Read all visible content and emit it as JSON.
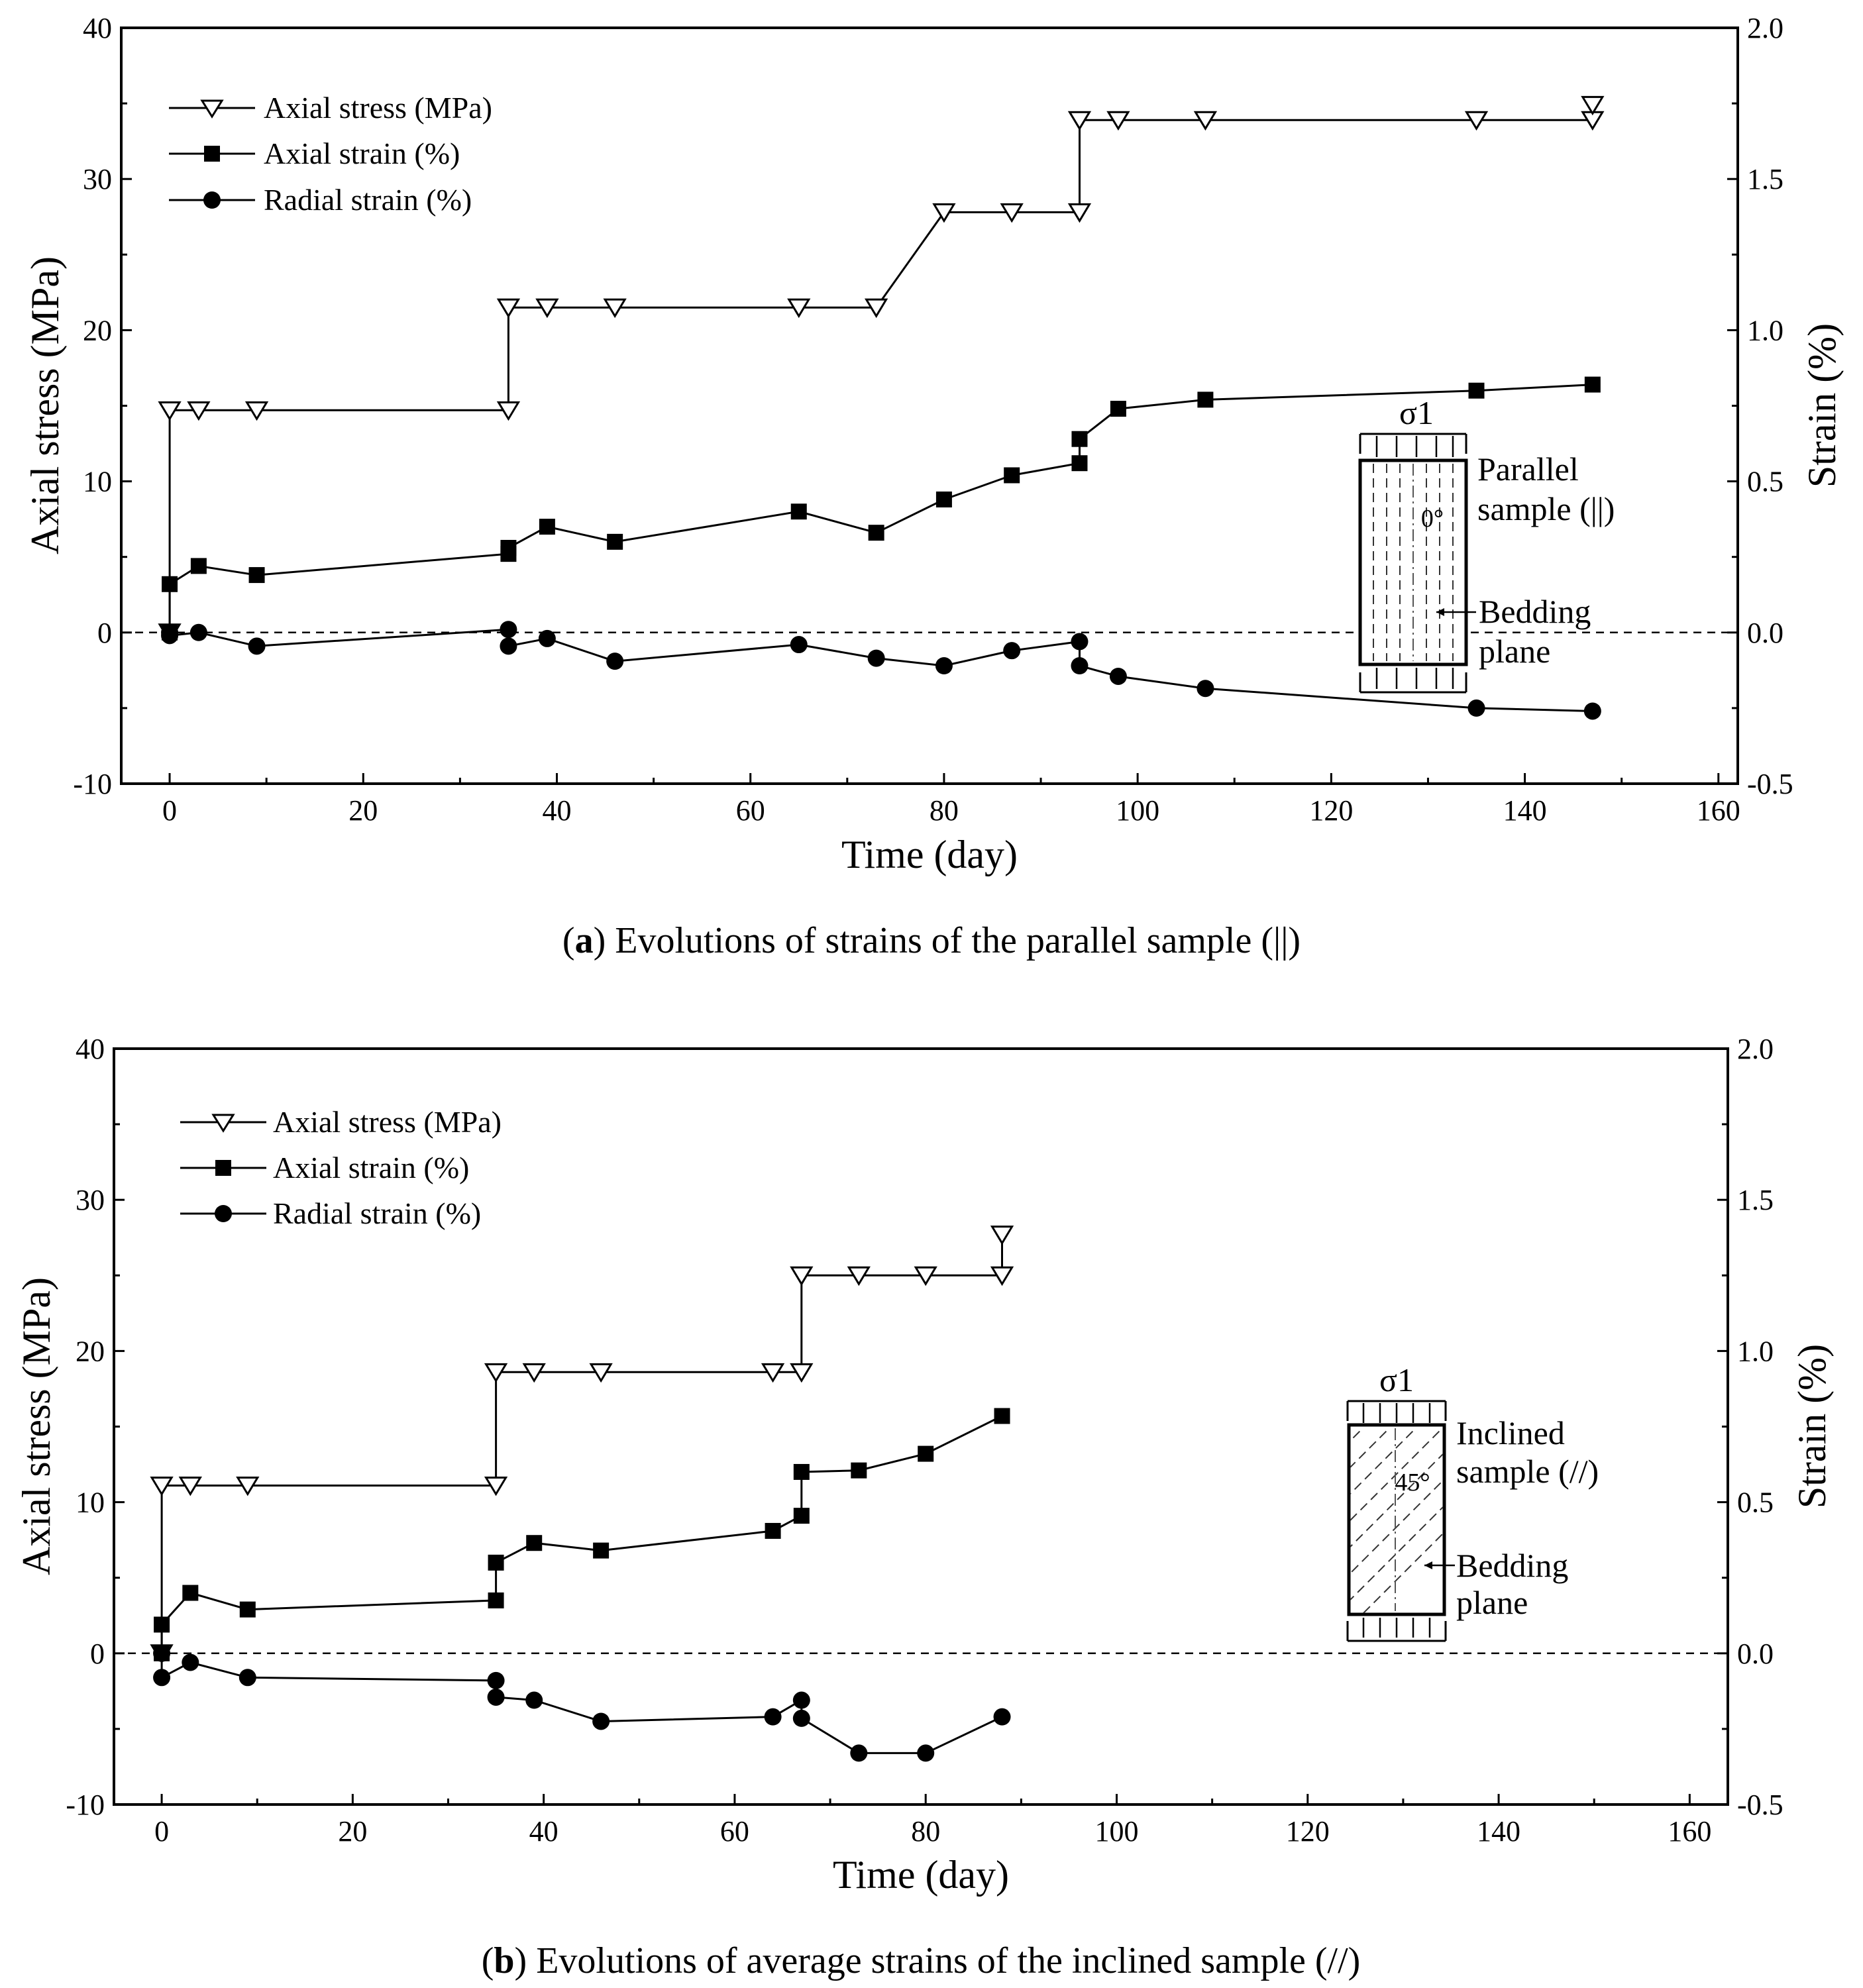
{
  "chart_data": [
    {
      "type": "line",
      "panel": "a",
      "caption_prefix": "(a)",
      "caption_text": "Evolutions of strains of the parallel sample (||)",
      "xlabel": "Time (day)",
      "ylabel": "Axial stress (MPa)",
      "y2label": "Strain (%)",
      "xlim": [
        -5,
        162
      ],
      "ylim": [
        -10,
        40
      ],
      "y2lim": [
        -0.5,
        2.0
      ],
      "xticks": [
        "0",
        "20",
        "40",
        "60",
        "80",
        "100",
        "120",
        "140",
        "160"
      ],
      "yticks": [
        "-10",
        "0",
        "10",
        "20",
        "30",
        "40"
      ],
      "y2ticks": [
        "-0.5",
        "0.0",
        "0.5",
        "1.0",
        "1.5",
        "2.0"
      ],
      "zero_line": true,
      "legend": {
        "position": "top-left",
        "entries": [
          "Axial stress (MPa)",
          "Axial strain (%)",
          "Radial strain (%)"
        ]
      },
      "series": [
        {
          "name": "Axial stress (MPa)",
          "axis": "left",
          "marker": "triangle-down-open",
          "x": [
            0,
            0,
            3,
            9,
            35,
            35,
            39,
            46,
            65,
            73,
            80,
            87,
            94,
            94,
            98,
            107,
            135,
            147,
            147
          ],
          "y": [
            0,
            14.7,
            14.7,
            14.7,
            14.7,
            21.5,
            21.5,
            21.5,
            21.5,
            21.5,
            27.8,
            27.8,
            27.8,
            33.9,
            33.9,
            33.9,
            33.9,
            33.9,
            34.9
          ]
        },
        {
          "name": "Axial strain (%)",
          "axis": "right",
          "marker": "square-filled",
          "x": [
            0,
            0,
            3,
            9,
            35,
            35,
            39,
            46,
            65,
            73,
            80,
            87,
            94,
            94,
            98,
            107,
            135,
            147
          ],
          "y": [
            0.0,
            0.16,
            0.22,
            0.19,
            0.26,
            0.28,
            0.35,
            0.3,
            0.4,
            0.33,
            0.44,
            0.52,
            0.56,
            0.64,
            0.74,
            0.77,
            0.8,
            0.82
          ]
        },
        {
          "name": "Radial strain (%)",
          "axis": "right",
          "marker": "circle-filled",
          "x": [
            0,
            0,
            3,
            9,
            35,
            35,
            39,
            46,
            65,
            73,
            80,
            87,
            94,
            94,
            98,
            107,
            135,
            147
          ],
          "y": [
            0.0,
            -0.01,
            0.0,
            -0.045,
            0.01,
            -0.045,
            -0.02,
            -0.095,
            -0.04,
            -0.085,
            -0.11,
            -0.06,
            -0.03,
            -0.11,
            -0.145,
            -0.185,
            -0.25,
            -0.26
          ]
        }
      ],
      "inset": {
        "load_label": "σ1",
        "sample_label_line1": "Parallel",
        "sample_label_line2": "sample (||)",
        "angle_label": "0°",
        "bedding_label_line1": "Bedding",
        "bedding_label_line2": "plane"
      }
    },
    {
      "type": "line",
      "panel": "b",
      "caption_prefix": "(b)",
      "caption_text": "Evolutions of average strains of the inclined sample (//)",
      "xlabel": "Time (day)",
      "ylabel": "Axial stress (MPa)",
      "y2label": "Strain (%)",
      "xlim": [
        -5,
        164
      ],
      "ylim": [
        -10,
        40
      ],
      "y2lim": [
        -0.5,
        2.0
      ],
      "xticks": [
        "0",
        "20",
        "40",
        "60",
        "80",
        "100",
        "120",
        "140",
        "160"
      ],
      "yticks": [
        "-10",
        "0",
        "10",
        "20",
        "30",
        "40"
      ],
      "y2ticks": [
        "-0.5",
        "0.0",
        "0.5",
        "1.0",
        "1.5",
        "2.0"
      ],
      "zero_line": true,
      "legend": {
        "position": "top-left",
        "entries": [
          "Axial stress (MPa)",
          "Axial strain (%)",
          "Radial strain (%)"
        ]
      },
      "series": [
        {
          "name": "Axial stress (MPa)",
          "axis": "left",
          "marker": "triangle-down-open",
          "x": [
            0,
            0,
            3,
            9,
            35,
            35,
            39,
            46,
            64,
            67,
            67,
            73,
            80,
            88,
            88
          ],
          "y": [
            0,
            11.1,
            11.1,
            11.1,
            11.1,
            18.6,
            18.6,
            18.6,
            18.6,
            18.6,
            25.0,
            25.0,
            25.0,
            25.0,
            27.7
          ]
        },
        {
          "name": "Axial strain (%)",
          "axis": "right",
          "marker": "square-filled",
          "x": [
            0,
            0,
            3,
            9,
            35,
            35,
            39,
            46,
            64,
            67,
            67,
            73,
            80,
            88
          ],
          "y": [
            0.0,
            0.095,
            0.2,
            0.145,
            0.175,
            0.3,
            0.365,
            0.34,
            0.405,
            0.455,
            0.6,
            0.605,
            0.66,
            0.785
          ]
        },
        {
          "name": "Radial strain (%)",
          "axis": "right",
          "marker": "circle-filled",
          "x": [
            0,
            0,
            3,
            9,
            35,
            35,
            39,
            46,
            64,
            67,
            67,
            73,
            80,
            88
          ],
          "y": [
            0.0,
            -0.08,
            -0.03,
            -0.08,
            -0.09,
            -0.145,
            -0.155,
            -0.225,
            -0.21,
            -0.155,
            -0.215,
            -0.33,
            -0.33,
            -0.21
          ]
        }
      ],
      "inset": {
        "load_label": "σ1",
        "sample_label_line1": "Inclined",
        "sample_label_line2": "sample (//)",
        "angle_label": "45°",
        "bedding_label_line1": "Bedding",
        "bedding_label_line2": "plane"
      }
    }
  ]
}
